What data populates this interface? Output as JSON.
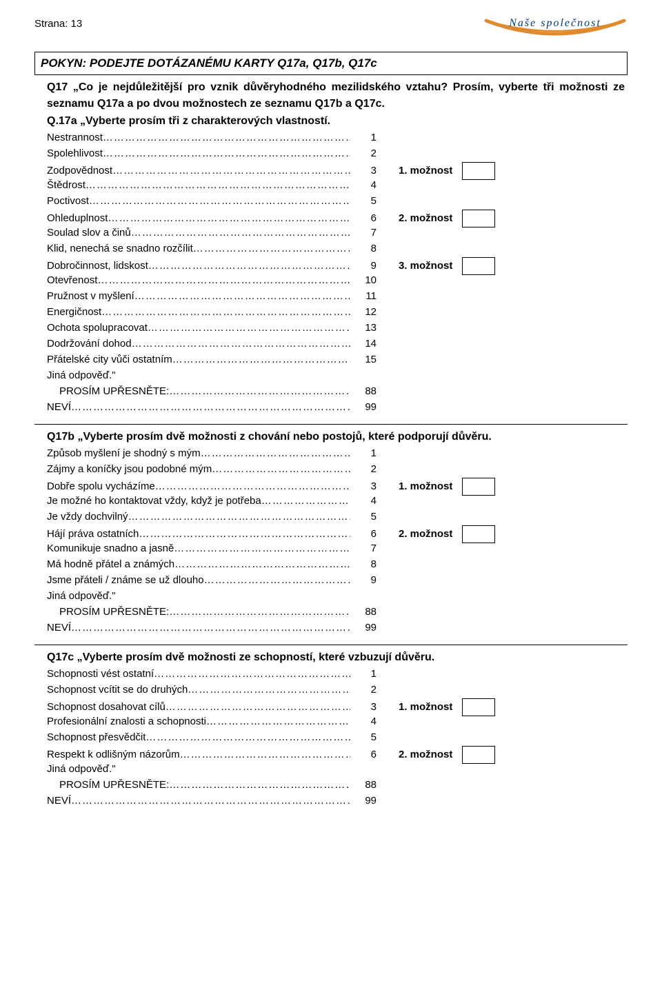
{
  "page_label": "Strana: 13",
  "logo_text": "Naše společnost",
  "logo_swoosh_color": "#e08a2f",
  "pokyn": "POKYN: PODEJTE DOTÁZANÉMU KARTY Q17a, Q17b, Q17c",
  "q17": {
    "title": "Q17 „Co je nejdůležitější pro vznik důvěryhodného mezilidského vztahu? Prosím, vyberte tři možnosti ze seznamu Q17a a po dvou možnostech ze seznamu Q17b a Q17c.",
    "subtitle": "Q.17a „Vyberte prosím tři z charakterových vlastností.",
    "items": [
      {
        "label": "Nestrannost",
        "num": "1"
      },
      {
        "label": "Spolehlivost",
        "num": "2"
      },
      {
        "label": "Zodpovědnost",
        "num": "3",
        "opt": "1. možnost"
      },
      {
        "label": "Štědrost",
        "num": "4"
      },
      {
        "label": "Poctivost",
        "num": "5"
      },
      {
        "label": "Ohleduplnost",
        "num": "6",
        "opt": "2. možnost"
      },
      {
        "label": "Soulad slov a činů",
        "num": "7"
      },
      {
        "label": "Klid, nenechá se snadno rozčílit",
        "num": "8"
      },
      {
        "label": "Dobročinnost, lidskost",
        "num": "9",
        "opt": "3. možnost"
      },
      {
        "label": "Otevřenost",
        "num": "10"
      },
      {
        "label": "Pružnost v myšlení",
        "num": "11"
      },
      {
        "label": "Energičnost",
        "num": "12"
      },
      {
        "label": "Ochota spolupracovat",
        "num": "13"
      },
      {
        "label": "Dodržování dohod",
        "num": "14"
      },
      {
        "label": "Přátelské city vůči ostatním",
        "num": "15"
      }
    ],
    "other_label": "Jiná odpověď.\"",
    "other_sub": "PROSÍM UPŘESNĚTE:",
    "other_num": "88",
    "nevi_label": "NEVÍ",
    "nevi_num": "99"
  },
  "q17b": {
    "title": "Q17b „Vyberte prosím dvě možnosti z chování nebo postojů, které podporují důvěru.",
    "items": [
      {
        "label": "Způsob myšlení je shodný s mým",
        "num": "1"
      },
      {
        "label": "Zájmy a koníčky jsou podobné mým",
        "num": "2"
      },
      {
        "label": "Dobře spolu vycházíme",
        "num": "3",
        "opt": "1. možnost"
      },
      {
        "label": "Je možné ho kontaktovat vždy, když je potřeba",
        "num": "4"
      },
      {
        "label": "Je vždy dochvilný",
        "num": "5"
      },
      {
        "label": "Hájí práva ostatních",
        "num": "6",
        "opt": "2. možnost"
      },
      {
        "label": "Komunikuje snadno a jasně",
        "num": "7"
      },
      {
        "label": "Má hodně přátel a známých",
        "num": "8"
      },
      {
        "label": "Jsme přáteli / známe se už dlouho",
        "num": "9"
      }
    ],
    "other_label": "Jiná odpověď.\"",
    "other_sub": "PROSÍM UPŘESNĚTE:",
    "other_num": "88",
    "nevi_label": "NEVÍ",
    "nevi_num": "99"
  },
  "q17c": {
    "title": "Q17c „Vyberte prosím dvě možnosti ze schopností, které vzbuzují důvěru.",
    "items": [
      {
        "label": "Schopnosti vést ostatní",
        "num": "1"
      },
      {
        "label": "Schopnost vcítit se do druhých",
        "num": "2"
      },
      {
        "label": "Schopnost dosahovat cílů",
        "num": "3",
        "opt": "1. možnost"
      },
      {
        "label": "Profesionální znalosti a schopnosti",
        "num": "4"
      },
      {
        "label": "Schopnost přesvědčit",
        "num": "5"
      },
      {
        "label": "Respekt k odlišným názorům",
        "num": "6",
        "opt": "2. možnost"
      }
    ],
    "other_label": "Jiná odpověď.\"",
    "other_sub": "PROSÍM UPŘESNĚTE:",
    "other_num": "88",
    "nevi_label": "NEVÍ",
    "nevi_num": "99"
  }
}
